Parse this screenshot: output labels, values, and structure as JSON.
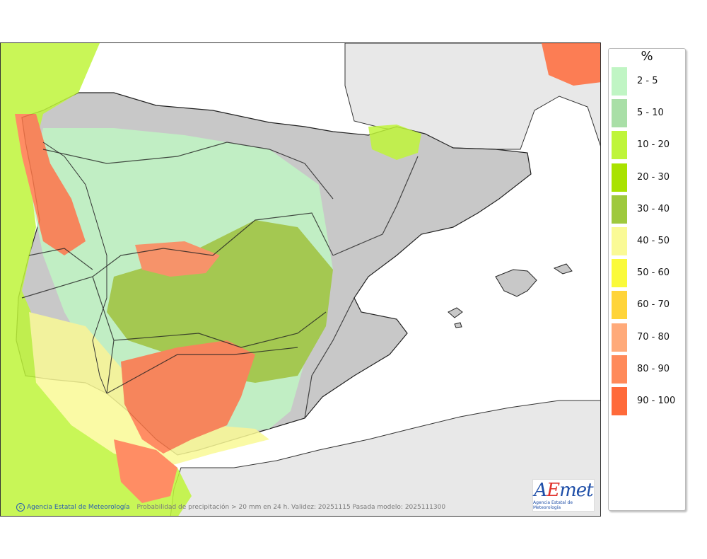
{
  "map": {
    "credit_agency": "Agencia Estatal de Meteorología",
    "caption": "Probabilidad de precipitación > 20 mm en 24 h. Validez: 20251115 Pasada modelo: 2025111300",
    "logo_text": "AEmet",
    "logo_subtext": "Agencia Estatal de Meteorología"
  },
  "legend": {
    "unit": "%",
    "items": [
      {
        "label": "2 - 5",
        "color": "#c0f5c4"
      },
      {
        "label": "5 - 10",
        "color": "#a9dfa7"
      },
      {
        "label": "10 - 20",
        "color": "#bff53a"
      },
      {
        "label": "20 - 30",
        "color": "#a9e200"
      },
      {
        "label": "30 - 40",
        "color": "#9ec93d"
      },
      {
        "label": "40 - 50",
        "color": "#fafa96"
      },
      {
        "label": "50 - 60",
        "color": "#fafa3a"
      },
      {
        "label": "60 - 70",
        "color": "#ffd43a"
      },
      {
        "label": "70 - 80",
        "color": "#ffaa7a"
      },
      {
        "label": "80 - 90",
        "color": "#ff8a5a"
      },
      {
        "label": "90 - 100",
        "color": "#ff6a3a"
      }
    ]
  }
}
